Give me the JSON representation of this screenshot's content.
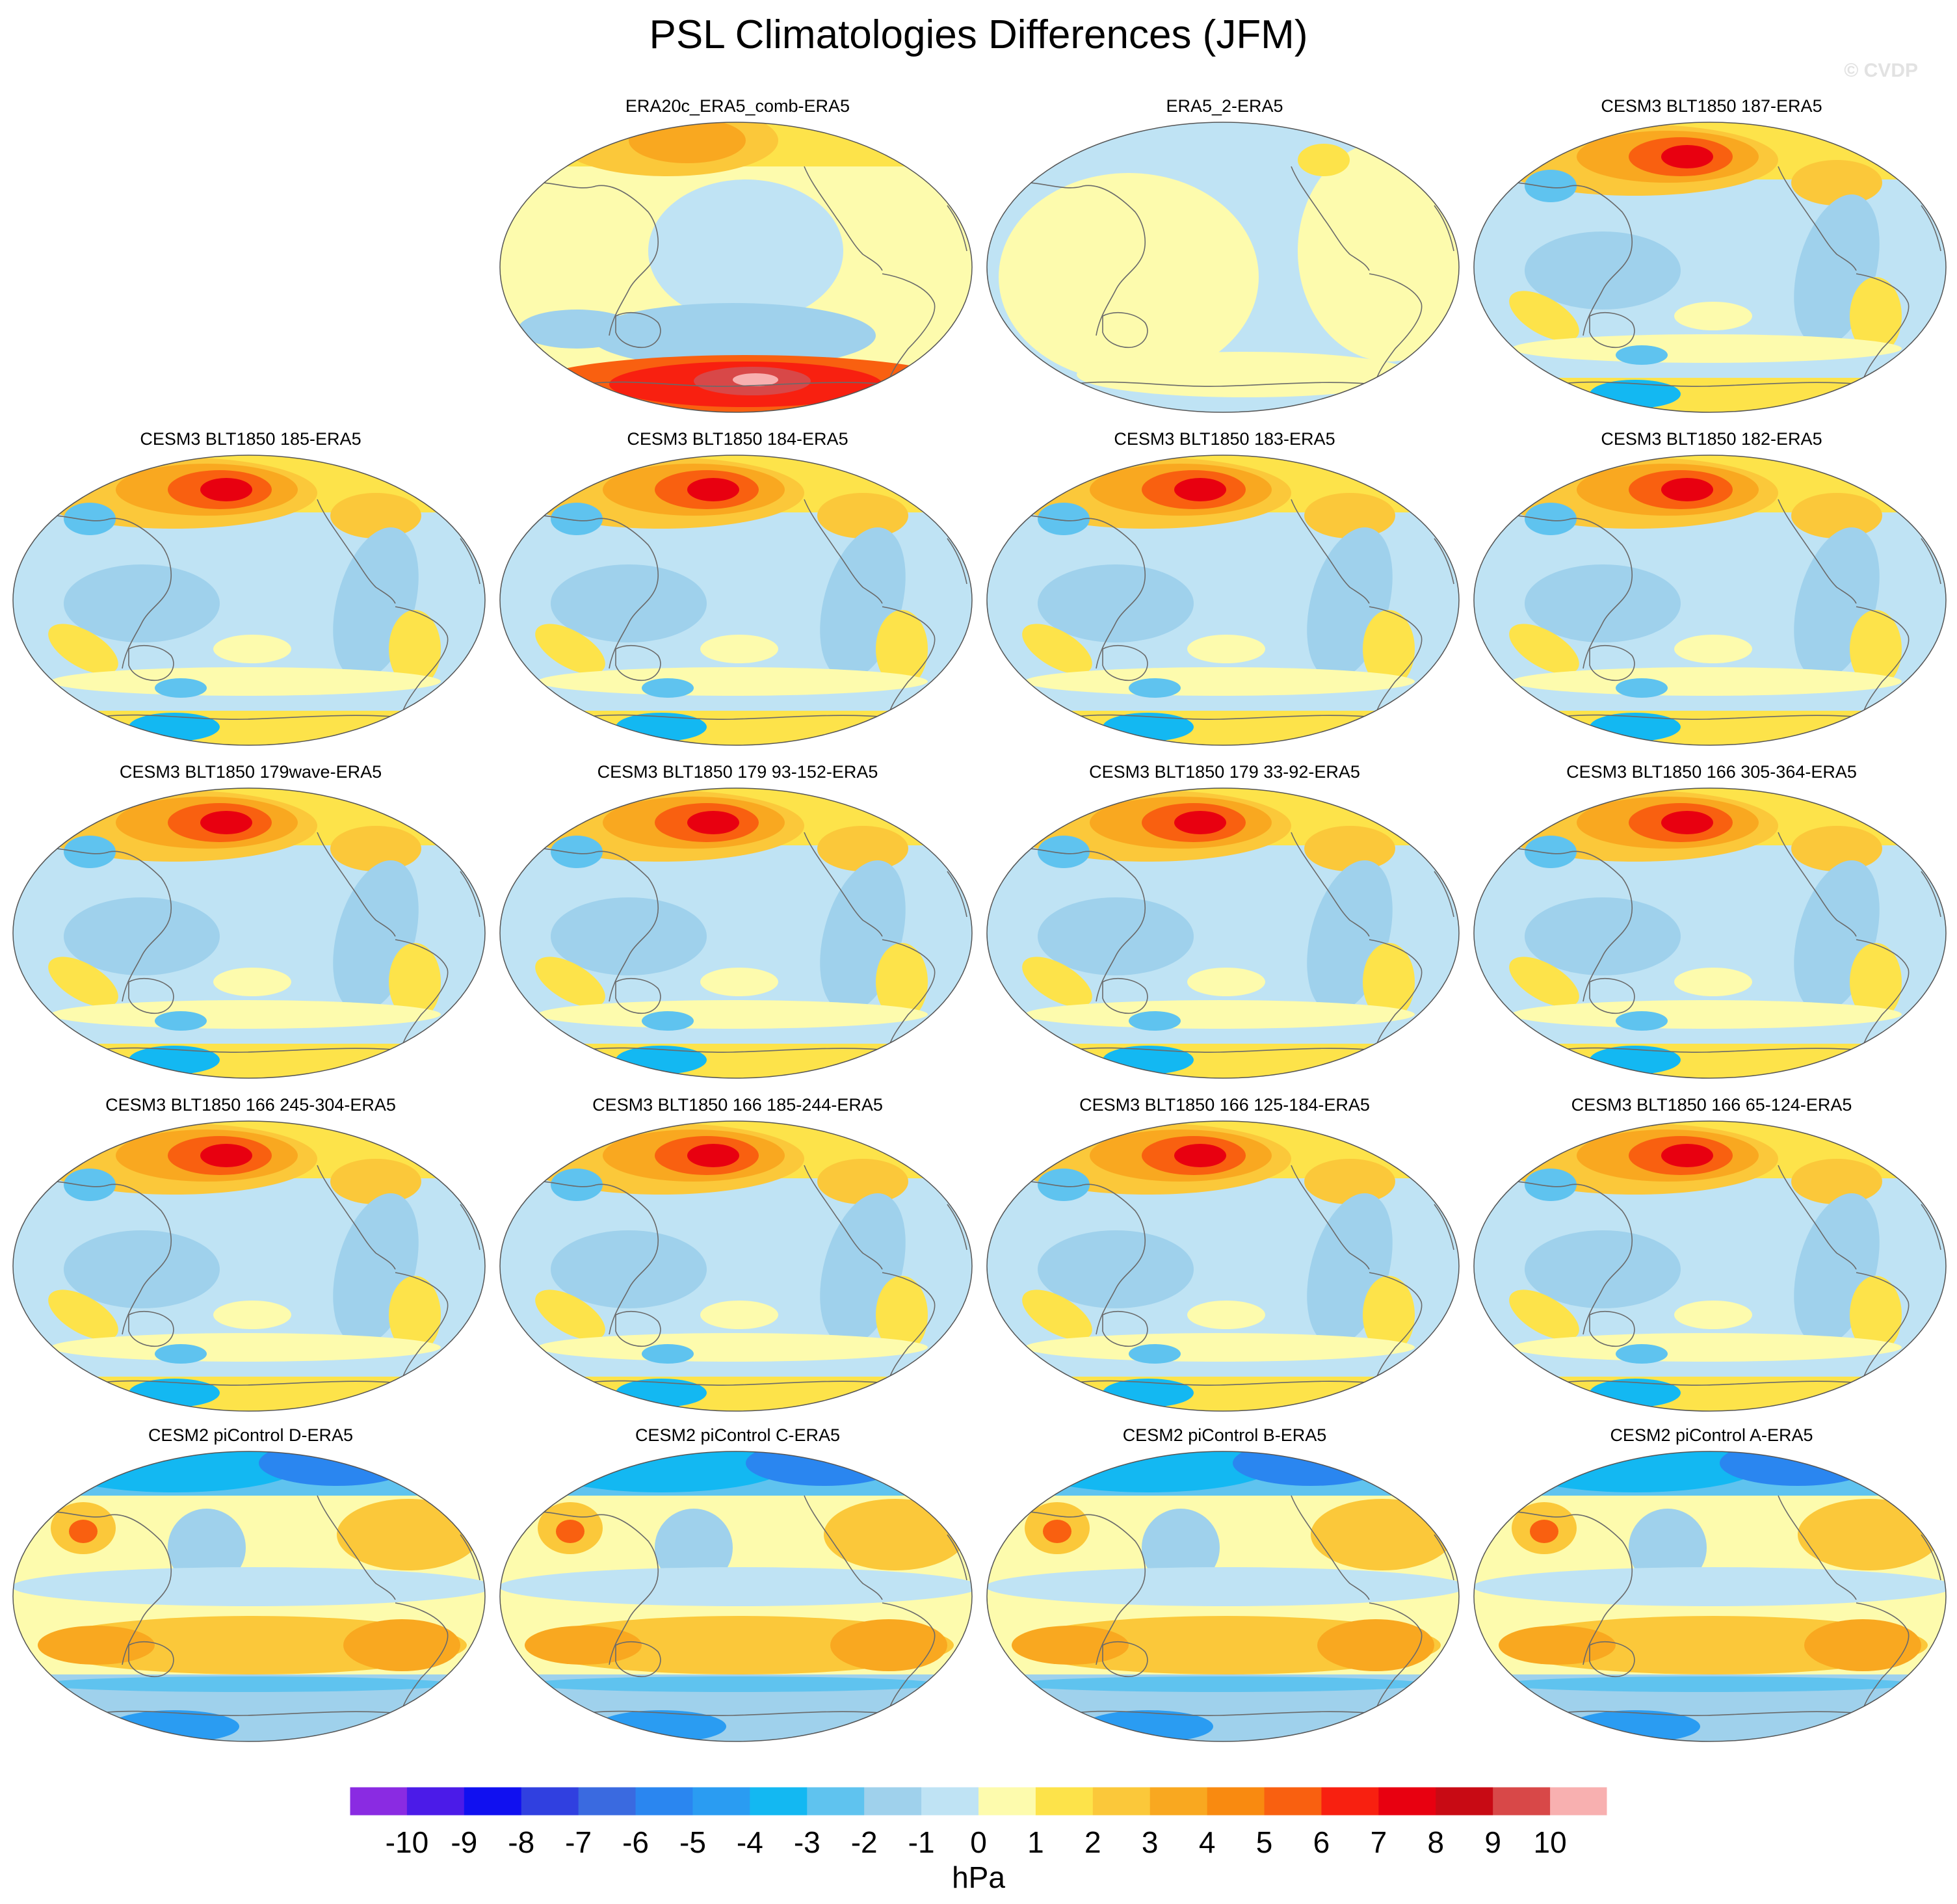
{
  "title": "PSL Climatologies Differences (JFM)",
  "watermark": "© CVDP",
  "panels": [
    {
      "label": "ERA20c_ERA5_comb-ERA5",
      "pattern": "era20c"
    },
    {
      "label": "ERA5_2-ERA5",
      "pattern": "era5"
    },
    {
      "label": "CESM3 BLT1850 187-ERA5",
      "pattern": "cesm3"
    },
    {
      "label": "CESM3 BLT1850 185-ERA5",
      "pattern": "cesm3"
    },
    {
      "label": "CESM3 BLT1850 184-ERA5",
      "pattern": "cesm3"
    },
    {
      "label": "CESM3 BLT1850 183-ERA5",
      "pattern": "cesm3"
    },
    {
      "label": "CESM3 BLT1850 182-ERA5",
      "pattern": "cesm3"
    },
    {
      "label": "CESM3 BLT1850 179wave-ERA5",
      "pattern": "cesm3"
    },
    {
      "label": "CESM3 BLT1850 179 93-152-ERA5",
      "pattern": "cesm3"
    },
    {
      "label": "CESM3 BLT1850 179 33-92-ERA5",
      "pattern": "cesm3"
    },
    {
      "label": "CESM3 BLT1850 166 305-364-ERA5",
      "pattern": "cesm3"
    },
    {
      "label": "CESM3 BLT1850 166 245-304-ERA5",
      "pattern": "cesm3"
    },
    {
      "label": "CESM3 BLT1850 166 185-244-ERA5",
      "pattern": "cesm3"
    },
    {
      "label": "CESM3 BLT1850 166 125-184-ERA5",
      "pattern": "cesm3"
    },
    {
      "label": "CESM3 BLT1850 166 65-124-ERA5",
      "pattern": "cesm3"
    },
    {
      "label": "CESM2 piControl D-ERA5",
      "pattern": "cesm2"
    },
    {
      "label": "CESM2 piControl C-ERA5",
      "pattern": "cesm2"
    },
    {
      "label": "CESM2 piControl B-ERA5",
      "pattern": "cesm2"
    },
    {
      "label": "CESM2 piControl A-ERA5",
      "pattern": "cesm2"
    }
  ],
  "colorbar": {
    "units": "hPa",
    "labels": [
      "-10",
      "-9",
      "-8",
      "-7",
      "-6",
      "-5",
      "-4",
      "-3",
      "-2",
      "-1",
      "0",
      "1",
      "2",
      "3",
      "4",
      "5",
      "6",
      "7",
      "8",
      "9",
      "10"
    ],
    "colors": [
      "#8a2be2",
      "#4b1be8",
      "#1010f0",
      "#3040e0",
      "#3a6ae0",
      "#2a86f0",
      "#2a9cf2",
      "#13b8f2",
      "#5fc3ef",
      "#9fd1ec",
      "#bfe3f4",
      "#fdfbad",
      "#fde34a",
      "#fbc83a",
      "#f9a820",
      "#f98a10",
      "#f96010",
      "#f82010",
      "#e80010",
      "#c80a14",
      "#d84848",
      "#f8b0b0"
    ]
  }
}
